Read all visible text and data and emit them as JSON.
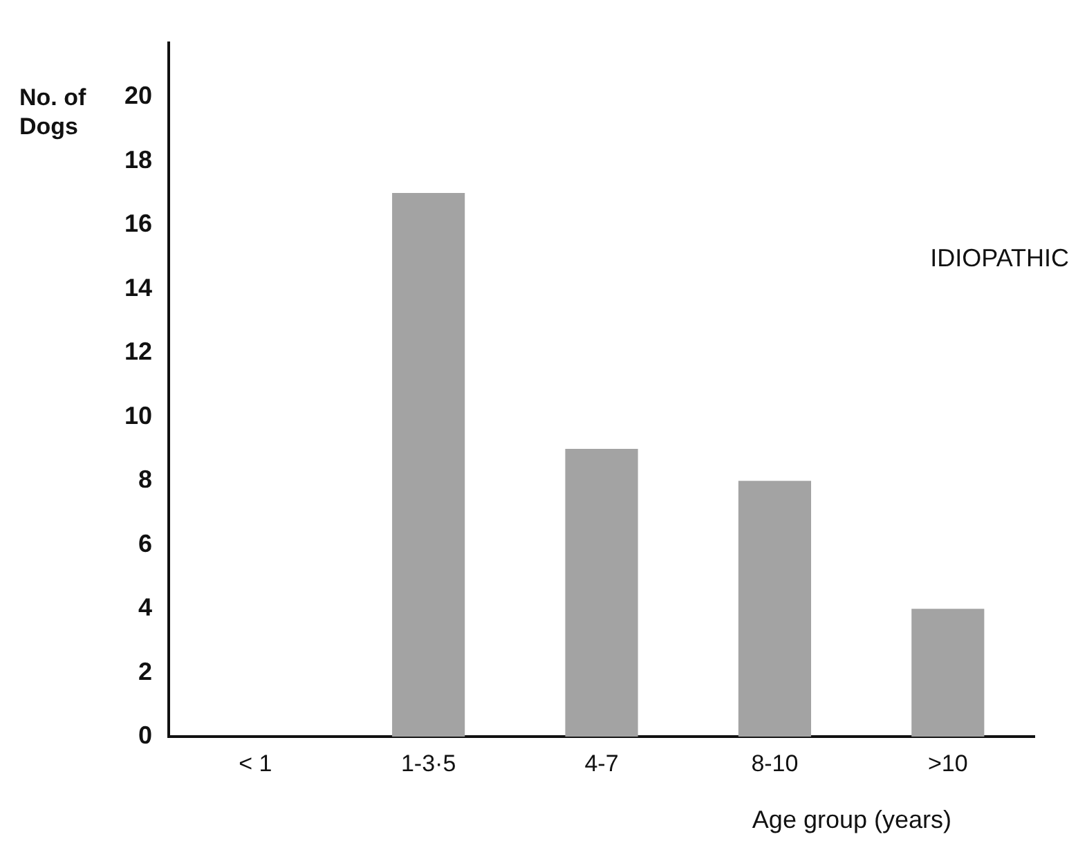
{
  "chart_data": {
    "type": "bar",
    "ylabel": "No. of Dogs",
    "xlabel": "Age group (years)",
    "annotations": [
      "IDIOPATHIC"
    ],
    "categories": [
      "< 1",
      "1-3·5",
      "4-7",
      "8-10",
      ">10"
    ],
    "values": [
      0,
      17,
      9,
      8,
      4
    ],
    "color": "#a3a3a3",
    "ylim": [
      0,
      21.7
    ],
    "yticks": [
      0,
      2,
      4,
      6,
      8,
      10,
      12,
      14,
      16,
      18,
      20
    ],
    "grid": false,
    "legend": false
  }
}
